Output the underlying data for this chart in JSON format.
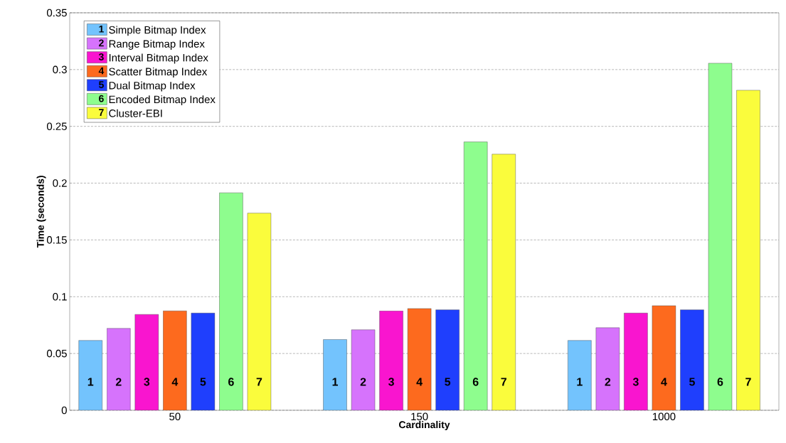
{
  "chart_data": {
    "type": "bar",
    "xlabel": "Cardinality",
    "ylabel": "Time (seconds)",
    "categories": [
      "50",
      "150",
      "1000"
    ],
    "series": [
      {
        "name": "Simple Bitmap Index",
        "color": "#73c3fd",
        "values": [
          0.0615,
          0.0623,
          0.0615
        ]
      },
      {
        "name": "Range Bitmap Index",
        "color": "#d673fc",
        "values": [
          0.0721,
          0.0709,
          0.0727
        ]
      },
      {
        "name": "Interval Bitmap Index",
        "color": "#f915cf",
        "values": [
          0.0844,
          0.0875,
          0.0856
        ]
      },
      {
        "name": "Scatter Bitmap Index",
        "color": "#fd6a1e",
        "values": [
          0.0875,
          0.0896,
          0.0921
        ]
      },
      {
        "name": "Dual Bitmap Index",
        "color": "#1f3ffd",
        "values": [
          0.0856,
          0.0885,
          0.0885
        ]
      },
      {
        "name": "Encoded Bitmap Index",
        "color": "#8efd8e",
        "values": [
          0.1915,
          0.2363,
          0.3056
        ]
      },
      {
        "name": "Cluster-EBI",
        "color": "#fafc3c",
        "values": [
          0.1736,
          0.2255,
          0.2818
        ]
      }
    ],
    "ylim": [
      0,
      0.35
    ],
    "yticks": [
      0,
      0.05,
      0.1,
      0.15,
      0.2,
      0.25,
      0.3,
      0.35
    ],
    "grid": "y",
    "legend": "top left",
    "annotations": [
      "1",
      "2",
      "3",
      "4",
      "5",
      "6",
      "7",
      "1",
      "2",
      "3",
      "4",
      "5",
      "6",
      "7",
      "1",
      "2",
      "3",
      "4",
      "5",
      "6",
      "7"
    ]
  }
}
